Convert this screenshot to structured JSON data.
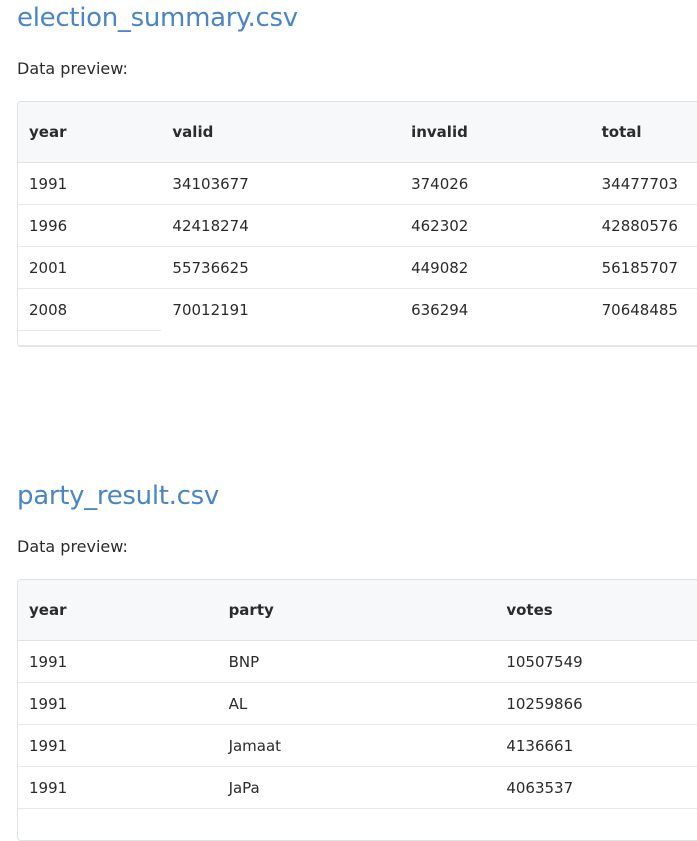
{
  "files": [
    {
      "title": "election_summary.csv",
      "preview_label": "Data preview:",
      "columns": [
        "year",
        "valid",
        "invalid",
        "total"
      ],
      "rows": [
        [
          "1991",
          "34103677",
          "374026",
          "34477703"
        ],
        [
          "1996",
          "42418274",
          "462302",
          "42880576"
        ],
        [
          "2001",
          "55736625",
          "449082",
          "56185707"
        ],
        [
          "2008",
          "70012191",
          "636294",
          "70648485"
        ]
      ]
    },
    {
      "title": "party_result.csv",
      "preview_label": "Data preview:",
      "columns": [
        "year",
        "party",
        "votes"
      ],
      "rows": [
        [
          "1991",
          "BNP",
          "10507549"
        ],
        [
          "1991",
          "AL",
          "10259866"
        ],
        [
          "1991",
          "Jamaat",
          "4136661"
        ],
        [
          "1991",
          "JaPa",
          "4063537"
        ]
      ]
    }
  ]
}
